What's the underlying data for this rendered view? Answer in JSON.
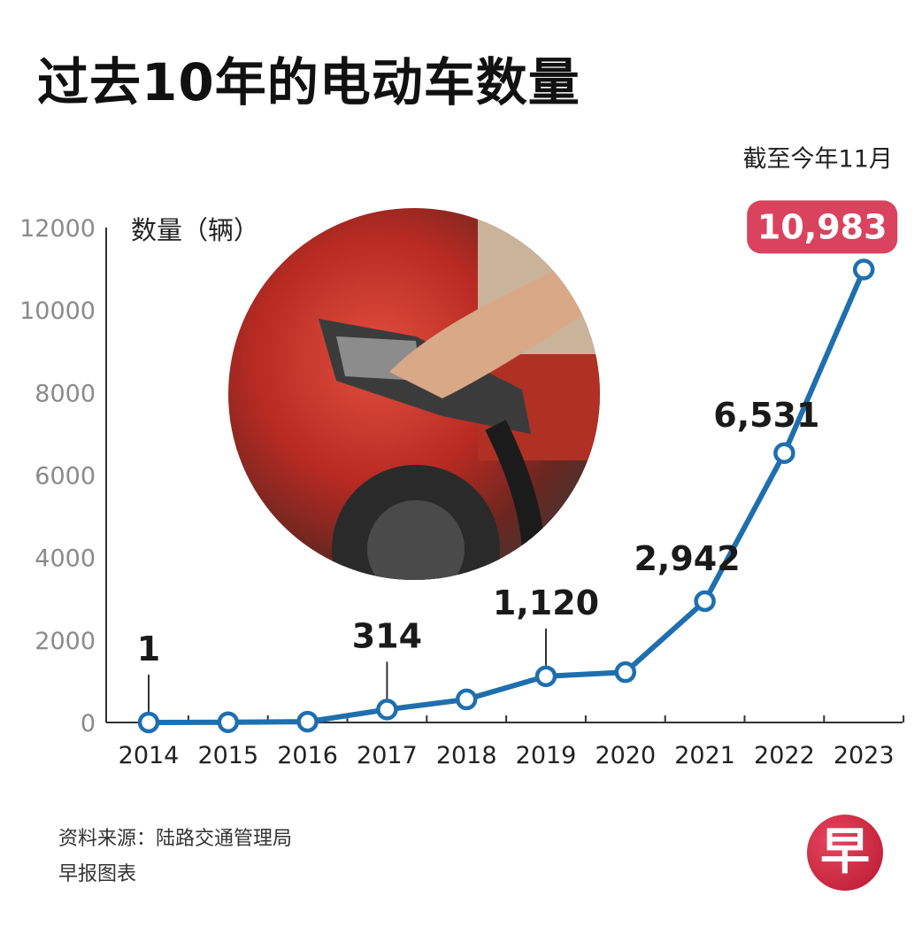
{
  "title": "过去10年的电动车数量",
  "chart_data": {
    "type": "line",
    "x": [
      "2014",
      "2015",
      "2016",
      "2017",
      "2018",
      "2019",
      "2020",
      "2021",
      "2022",
      "2023"
    ],
    "values": [
      1,
      5,
      20,
      314,
      560,
      1120,
      1220,
      2942,
      6531,
      10983
    ],
    "ylabel": "数量（辆）",
    "ylim": [
      0,
      12000
    ],
    "yticks": [
      0,
      2000,
      4000,
      6000,
      8000,
      10000,
      12000
    ],
    "data_labels": [
      {
        "index": 0,
        "text": "1"
      },
      {
        "index": 3,
        "text": "314"
      },
      {
        "index": 5,
        "text": "1,120"
      },
      {
        "index": 7,
        "text": "2,942"
      },
      {
        "index": 8,
        "text": "6,531"
      }
    ],
    "highlight": {
      "index": 9,
      "text": "10,983",
      "note": "截至今年11月",
      "color": "#d9435e"
    },
    "line_color": "#1f6fae",
    "grid": false
  },
  "source": "资料来源：陆路交通管理局",
  "credit": "早报图表",
  "logo": "早"
}
